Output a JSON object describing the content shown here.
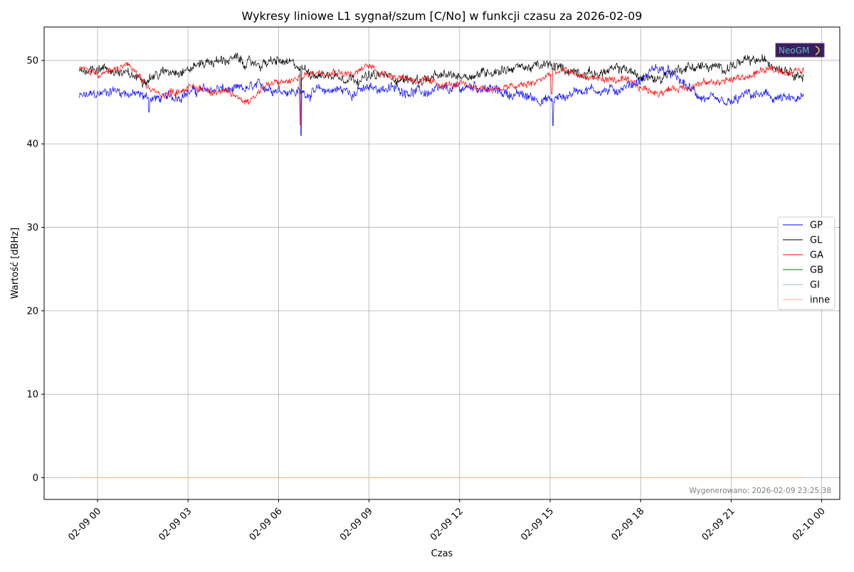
{
  "chart_data": {
    "type": "line",
    "title": "Wykresy liniowe L1 sygnał/szum [C/No] w funkcji czasu za 2026-02-09",
    "xlabel": "Czas",
    "ylabel": "Wartość [dBHz]",
    "x_tick_labels": [
      "02-09 00",
      "02-09 03",
      "02-09 06",
      "02-09 09",
      "02-09 12",
      "02-09 15",
      "02-09 18",
      "02-09 21",
      "02-10 00"
    ],
    "x_tick_hours": [
      0,
      3,
      6,
      9,
      12,
      15,
      18,
      21,
      24
    ],
    "xlim_hours": [
      -1.77,
      24.6
    ],
    "x_start": "2026-02-08 23:25",
    "x_end": "2026-02-09 23:25",
    "y_ticks": [
      0,
      10,
      20,
      30,
      40,
      50
    ],
    "ylim": [
      -2.6,
      54
    ],
    "grid": true,
    "legend_position": "center-right",
    "footnote": "Wygenerowano: 2026-02-09 23:25:38",
    "logo_text": "NeoGM",
    "series": [
      {
        "name": "GP",
        "color": "#0000ff",
        "noise": 0.6,
        "hours": [
          -0.6,
          0,
          0.5,
          1,
          1.5,
          2,
          2.5,
          3,
          3.5,
          4,
          4.5,
          5,
          5.5,
          6,
          6.5,
          7,
          7.5,
          8,
          8.5,
          9,
          9.5,
          10,
          10.5,
          11,
          11.5,
          12,
          12.5,
          13,
          13.5,
          14,
          14.5,
          15,
          15.5,
          16,
          16.5,
          17,
          17.5,
          18,
          18.5,
          19,
          19.5,
          20,
          20.5,
          21,
          21.5,
          22,
          22.5,
          23,
          23.4
        ],
        "values": [
          45.6,
          45.9,
          46.5,
          46.1,
          45.7,
          45.4,
          45.6,
          46.2,
          46.4,
          46.6,
          46.3,
          46.6,
          46.9,
          46.6,
          46.3,
          46.1,
          46.4,
          46.5,
          46.2,
          46.6,
          46.7,
          46.5,
          46.3,
          46.1,
          46.4,
          46.6,
          47.0,
          46.5,
          46.1,
          45.8,
          45.5,
          45.2,
          45.7,
          46.6,
          46.5,
          46.3,
          46.9,
          47.6,
          49.2,
          48.4,
          46.9,
          45.6,
          44.9,
          44.8,
          45.9,
          45.8,
          45.5,
          45.2,
          45.4
        ],
        "dips": [
          [
            6.75,
            41.0
          ],
          [
            15.1,
            42.2
          ],
          [
            1.7,
            43.8
          ]
        ]
      },
      {
        "name": "GL",
        "color": "#000000",
        "noise": 0.6,
        "hours": [
          -0.6,
          0,
          0.5,
          1,
          1.5,
          2,
          2.5,
          3,
          3.5,
          4,
          4.5,
          5,
          5.5,
          6,
          6.5,
          7,
          7.5,
          8,
          8.5,
          9,
          9.5,
          10,
          10.5,
          11,
          11.5,
          12,
          12.5,
          13,
          13.5,
          14,
          14.5,
          15,
          15.5,
          16,
          16.5,
          17,
          17.5,
          18,
          18.5,
          19,
          19.5,
          20,
          20.5,
          21,
          21.5,
          22,
          22.5,
          23,
          23.4
        ],
        "values": [
          48.8,
          49.2,
          48.8,
          48.2,
          47.9,
          48.3,
          48.9,
          48.9,
          49.8,
          49.9,
          50.2,
          49.6,
          49.6,
          49.9,
          49.4,
          48.7,
          48.2,
          48.2,
          47.9,
          48.0,
          48.2,
          47.8,
          47.6,
          47.8,
          48.1,
          48.2,
          48.3,
          48.7,
          49.0,
          49.2,
          49.2,
          49.4,
          48.9,
          48.6,
          48.4,
          48.7,
          49.1,
          47.9,
          47.7,
          48.6,
          49.2,
          49.3,
          49.0,
          49.4,
          49.8,
          50.0,
          49.4,
          48.9,
          48.0
        ],
        "dips": [
          [
            6.75,
            46.0
          ]
        ]
      },
      {
        "name": "GA",
        "color": "#ff0000",
        "noise": 0.45,
        "hours": [
          -0.6,
          0,
          0.5,
          1,
          1.5,
          2,
          2.5,
          3,
          3.5,
          4,
          4.5,
          5,
          5.5,
          6,
          6.5,
          7,
          7.5,
          8,
          8.5,
          9,
          9.5,
          10,
          10.5,
          11,
          11.5,
          12,
          12.5,
          13,
          13.5,
          14,
          14.5,
          15,
          15.5,
          16,
          16.5,
          17,
          17.5,
          18,
          18.5,
          19,
          19.5,
          20,
          20.5,
          21,
          21.5,
          22,
          22.5,
          23,
          23.4
        ],
        "values": [
          49.0,
          48.5,
          48.6,
          49.6,
          47.2,
          45.9,
          46.2,
          46.8,
          46.6,
          46.3,
          45.8,
          45.1,
          46.9,
          47.3,
          47.6,
          48.4,
          48.8,
          48.7,
          48.3,
          49.4,
          48.4,
          48.1,
          47.7,
          47.3,
          47.1,
          47.0,
          46.8,
          46.6,
          46.7,
          46.9,
          47.3,
          48.4,
          48.7,
          48.2,
          47.8,
          47.7,
          47.5,
          46.7,
          46.2,
          46.5,
          46.9,
          47.2,
          47.4,
          47.7,
          48.0,
          48.7,
          48.9,
          48.6,
          48.8
        ],
        "dips": [
          [
            6.72,
            42.3
          ],
          [
            15.05,
            46.0
          ]
        ]
      },
      {
        "name": "GB",
        "color": "#008000",
        "flat": 0
      },
      {
        "name": "GI",
        "color": "#8fb8e0",
        "flat": 0
      },
      {
        "name": "inne",
        "color": "#f4b183",
        "flat": 0
      }
    ]
  }
}
